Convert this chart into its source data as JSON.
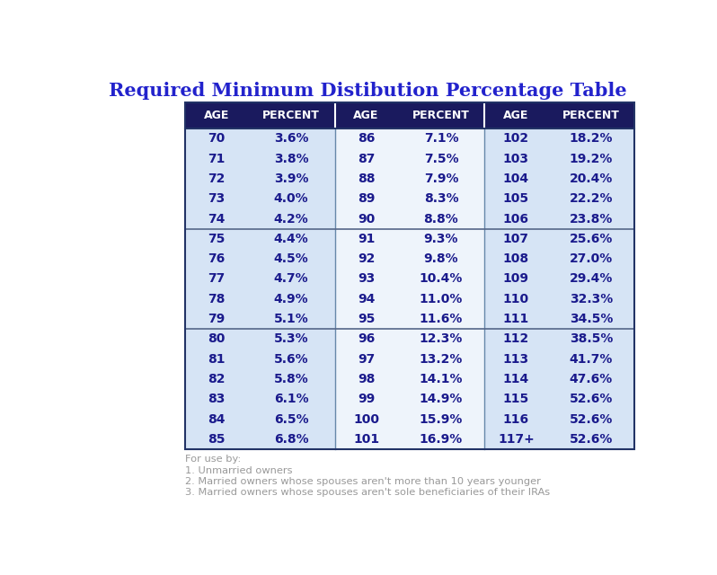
{
  "title": "Required Minimum Distibution Percentage Table",
  "title_color": "#2222cc",
  "header_bg": "#1a1a5e",
  "header_text_color": "#ffffff",
  "row_bg_blue": "#d6e4f5",
  "row_bg_white": "#eef4fb",
  "data_text_color": "#1a1a8c",
  "footer_text_color": "#999999",
  "columns": [
    "AGE",
    "PERCENT",
    "AGE",
    "PERCENT",
    "AGE",
    "PERCENT"
  ],
  "rows": [
    [
      "70",
      "3.6%",
      "86",
      "7.1%",
      "102",
      "18.2%"
    ],
    [
      "71",
      "3.8%",
      "87",
      "7.5%",
      "103",
      "19.2%"
    ],
    [
      "72",
      "3.9%",
      "88",
      "7.9%",
      "104",
      "20.4%"
    ],
    [
      "73",
      "4.0%",
      "89",
      "8.3%",
      "105",
      "22.2%"
    ],
    [
      "74",
      "4.2%",
      "90",
      "8.8%",
      "106",
      "23.8%"
    ],
    [
      "75",
      "4.4%",
      "91",
      "9.3%",
      "107",
      "25.6%"
    ],
    [
      "76",
      "4.5%",
      "92",
      "9.8%",
      "108",
      "27.0%"
    ],
    [
      "77",
      "4.7%",
      "93",
      "10.4%",
      "109",
      "29.4%"
    ],
    [
      "78",
      "4.9%",
      "94",
      "11.0%",
      "110",
      "32.3%"
    ],
    [
      "79",
      "5.1%",
      "95",
      "11.6%",
      "111",
      "34.5%"
    ],
    [
      "80",
      "5.3%",
      "96",
      "12.3%",
      "112",
      "38.5%"
    ],
    [
      "81",
      "5.6%",
      "97",
      "13.2%",
      "113",
      "41.7%"
    ],
    [
      "82",
      "5.8%",
      "98",
      "14.1%",
      "114",
      "47.6%"
    ],
    [
      "83",
      "6.1%",
      "99",
      "14.9%",
      "115",
      "52.6%"
    ],
    [
      "84",
      "6.5%",
      "100",
      "15.9%",
      "116",
      "52.6%"
    ],
    [
      "85",
      "6.8%",
      "101",
      "16.9%",
      "117+",
      "52.6%"
    ]
  ],
  "group_separators": [
    5,
    10
  ],
  "footer_lines": [
    "For use by:",
    "1. Unmarried owners",
    "2. Married owners whose spouses aren't more than 10 years younger",
    "3. Married owners whose spouses aren't sole beneficiaries of their IRAs"
  ],
  "bg_color": "#ffffff"
}
